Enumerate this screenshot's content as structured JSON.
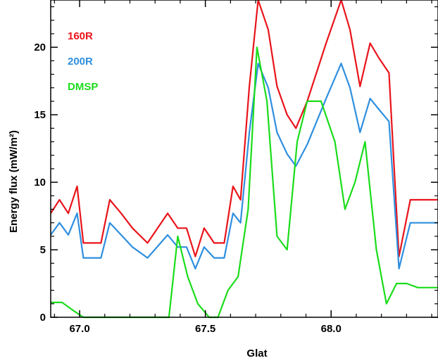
{
  "chart_data": {
    "type": "line",
    "xlabel": "Glat",
    "ylabel": "Energy flux (mW/m²)",
    "xlim": [
      66.885,
      68.425
    ],
    "ylim": [
      0,
      23.5
    ],
    "x_ticks": [
      67.0,
      67.5,
      68.0
    ],
    "x_tick_labels": [
      "67.0",
      "67.5",
      "68.0"
    ],
    "y_ticks": [
      0,
      5,
      10,
      15,
      20
    ],
    "y_tick_labels": [
      "0",
      "5",
      "10",
      "15",
      "20"
    ],
    "legend": "top-left",
    "grid": false,
    "series": [
      {
        "name": "160R",
        "color": "#e8141b",
        "x": [
          66.885,
          66.92,
          66.955,
          66.99,
          67.015,
          67.05,
          67.085,
          67.12,
          67.165,
          67.21,
          67.27,
          67.35,
          67.39,
          67.425,
          67.46,
          67.495,
          67.535,
          67.575,
          67.61,
          67.64,
          67.675,
          67.71,
          67.75,
          67.785,
          67.825,
          67.86,
          67.905,
          67.98,
          68.04,
          68.075,
          68.115,
          68.155,
          68.19,
          68.23,
          68.27,
          68.315,
          68.365,
          68.4,
          68.425
        ],
        "values": [
          7.7,
          8.7,
          7.7,
          9.7,
          5.5,
          5.5,
          5.5,
          8.7,
          7.7,
          6.6,
          5.5,
          7.7,
          6.6,
          6.6,
          4.5,
          6.6,
          5.5,
          5.5,
          9.7,
          8.7,
          17.1,
          23.5,
          21.3,
          17.1,
          15.0,
          14.0,
          16.0,
          20.3,
          23.5,
          21.3,
          17.1,
          20.3,
          19.2,
          18.1,
          4.5,
          8.7,
          8.7,
          8.7,
          8.7
        ]
      },
      {
        "name": "200R",
        "color": "#2f8fdf",
        "x": [
          66.885,
          66.92,
          66.955,
          66.99,
          67.015,
          67.05,
          67.085,
          67.12,
          67.165,
          67.21,
          67.27,
          67.35,
          67.39,
          67.425,
          67.46,
          67.495,
          67.535,
          67.575,
          67.61,
          67.64,
          67.675,
          67.71,
          67.75,
          67.785,
          67.825,
          67.86,
          67.905,
          67.98,
          68.04,
          68.075,
          68.115,
          68.155,
          68.19,
          68.23,
          68.27,
          68.315,
          68.365,
          68.4,
          68.425
        ],
        "values": [
          6.1,
          7.0,
          6.1,
          7.7,
          4.4,
          4.4,
          4.4,
          7.0,
          6.1,
          5.2,
          4.4,
          6.1,
          5.2,
          5.2,
          3.6,
          5.2,
          4.4,
          4.4,
          7.7,
          7.0,
          13.7,
          18.8,
          17.0,
          13.7,
          12.1,
          11.2,
          12.8,
          16.2,
          18.8,
          17.0,
          13.7,
          16.2,
          15.4,
          14.5,
          3.6,
          7.0,
          7.0,
          7.0,
          7.0
        ]
      },
      {
        "name": "DMSP",
        "color": "#1bdc1b",
        "x": [
          66.885,
          66.93,
          66.975,
          67.015,
          67.06,
          67.1,
          67.145,
          67.19,
          67.235,
          67.275,
          67.315,
          67.355,
          67.39,
          67.43,
          67.47,
          67.515,
          67.55,
          67.59,
          67.63,
          67.67,
          67.705,
          67.745,
          67.785,
          67.825,
          67.865,
          67.905,
          67.96,
          68.015,
          68.055,
          68.095,
          68.135,
          68.18,
          68.22,
          68.26,
          68.3,
          68.345,
          68.38,
          68.41,
          68.425
        ],
        "values": [
          1.1,
          1.1,
          0.5,
          0.0,
          0.0,
          0.0,
          0.0,
          0.0,
          0.0,
          0.0,
          0.0,
          0.0,
          6.0,
          3.0,
          1.0,
          0.0,
          0.0,
          2.0,
          3.0,
          8.0,
          20.0,
          16.0,
          6.0,
          5.0,
          13.0,
          16.0,
          16.0,
          13.0,
          8.0,
          10.0,
          13.0,
          5.0,
          1.0,
          2.5,
          2.5,
          2.2,
          2.2,
          2.2,
          2.2
        ]
      }
    ]
  }
}
